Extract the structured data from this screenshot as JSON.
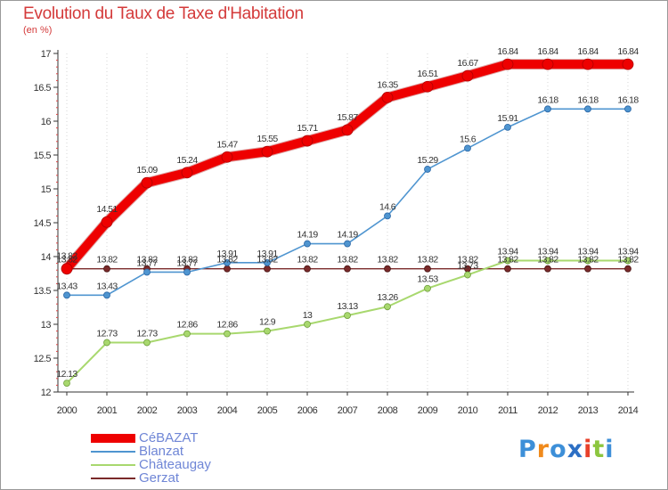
{
  "title": "Evolution du Taux de Taxe d'Habitation",
  "subtitle": "(en %)",
  "chart_data": {
    "type": "line",
    "x": [
      "2000",
      "2001",
      "2002",
      "2003",
      "2004",
      "2005",
      "2006",
      "2007",
      "2008",
      "2009",
      "2010",
      "2011",
      "2012",
      "2013",
      "2014"
    ],
    "ylim": [
      12,
      17
    ],
    "yticks": [
      "12",
      "12.5",
      "13",
      "13.5",
      "14",
      "14.5",
      "15",
      "15.5",
      "16",
      "16.5",
      "17"
    ],
    "grid": "vertical dotted",
    "legend_position": "bottom-left",
    "series": [
      {
        "name": "CéBAZAT",
        "color": "#ee0000",
        "values": [
          13.82,
          14.51,
          15.09,
          15.24,
          15.47,
          15.55,
          15.71,
          15.87,
          16.35,
          16.51,
          16.67,
          16.84,
          16.84,
          16.84,
          16.84
        ],
        "labels": [
          "13.82",
          "14.51",
          "15.09",
          "15.24",
          "15.47",
          "15.55",
          "15.71",
          "15.87",
          "16.35",
          "16.51",
          "16.67",
          "16.84",
          "16.84",
          "16.84",
          "16.84"
        ]
      },
      {
        "name": "Blanzat",
        "color": "#4f95d0",
        "values": [
          13.43,
          13.43,
          13.77,
          13.77,
          13.91,
          13.91,
          14.19,
          14.19,
          14.6,
          15.29,
          15.6,
          15.91,
          16.18,
          16.18,
          16.18
        ],
        "labels": [
          "13.43",
          "13.43",
          "13.77",
          "13.77",
          "13.91",
          "13.91",
          "14.19",
          "14.19",
          "14.6",
          "15.29",
          "15.6",
          "15.91",
          "16.18",
          "16.18",
          "16.18"
        ]
      },
      {
        "name": "Châteaugay",
        "color": "#a8d86e",
        "values": [
          12.13,
          12.73,
          12.73,
          12.86,
          12.86,
          12.9,
          13,
          13.13,
          13.26,
          13.53,
          13.73,
          13.94,
          13.94,
          13.94,
          13.94
        ],
        "labels": [
          "12.13",
          "12.73",
          "12.73",
          "12.86",
          "12.86",
          "12.9",
          "13",
          "13.13",
          "13.26",
          "13.53",
          "13.73",
          "13.94",
          "13.94",
          "13.94",
          "13.94"
        ]
      },
      {
        "name": "Gerzat",
        "color": "#7a2a2a",
        "values": [
          13.82,
          13.82,
          13.82,
          13.82,
          13.82,
          13.82,
          13.82,
          13.82,
          13.82,
          13.82,
          13.82,
          13.82,
          13.82,
          13.82,
          13.82
        ],
        "labels": [
          "13.82",
          "13.82",
          "13.82",
          "13.82",
          "13.82",
          "13.82",
          "13.82",
          "13.82",
          "13.82",
          "13.82",
          "13.82",
          "13.82",
          "13.82",
          "13.82",
          "13.82"
        ]
      }
    ]
  },
  "logo": {
    "letters": [
      "P",
      "r",
      "o",
      "x",
      "i",
      "t",
      "i"
    ],
    "colors": [
      "#3d8fd8",
      "#f08a1c",
      "#3d8fd8",
      "#2c6fc4",
      "#e8402a",
      "#8cc63f",
      "#3d8fd8"
    ]
  }
}
